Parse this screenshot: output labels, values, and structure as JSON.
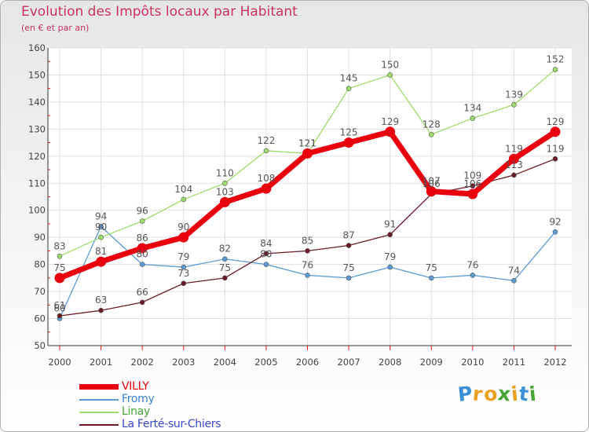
{
  "title": "Evolution des Impôts locaux par Habitant",
  "subtitle": "(en € et par an)",
  "logo": {
    "letters": [
      "P",
      "r",
      "o",
      "x",
      "i",
      "t",
      "i"
    ],
    "colors": [
      "#3a8fd6",
      "#e8a020",
      "#e8a020",
      "#49a535",
      "#e8a020",
      "#3a8fd6",
      "#49a535"
    ]
  },
  "chart_data": {
    "type": "line",
    "title": "Evolution des Impôts locaux par Habitant",
    "subtitle": "(en € et par an)",
    "x": [
      "2000",
      "2001",
      "2002",
      "2003",
      "2004",
      "2005",
      "2006",
      "2007",
      "2008",
      "2009",
      "2010",
      "2011",
      "2012"
    ],
    "ylim": [
      50,
      160
    ],
    "yticks": [
      50,
      60,
      70,
      80,
      90,
      100,
      110,
      120,
      130,
      140,
      150,
      160
    ],
    "grid": true,
    "legend": "bottom-left",
    "series": [
      {
        "name": "VILLY",
        "color": "#e8000e",
        "values": [
          75,
          81,
          86,
          90,
          103,
          108,
          121,
          125,
          129,
          107,
          106,
          119,
          129
        ]
      },
      {
        "name": "Fromy",
        "color": "#5b9ad4",
        "values": [
          60,
          94,
          80,
          79,
          82,
          80,
          76,
          75,
          79,
          75,
          76,
          74,
          92
        ]
      },
      {
        "name": "Linay",
        "color": "#9ddc6a",
        "values": [
          83,
          90,
          96,
          104,
          110,
          122,
          121,
          145,
          150,
          128,
          134,
          139,
          152
        ]
      },
      {
        "name": "La Ferté-sur-Chiers",
        "color": "#6b1a24",
        "values": [
          61,
          63,
          66,
          73,
          75,
          84,
          85,
          87,
          91,
          106,
          109,
          113,
          119
        ]
      }
    ]
  }
}
